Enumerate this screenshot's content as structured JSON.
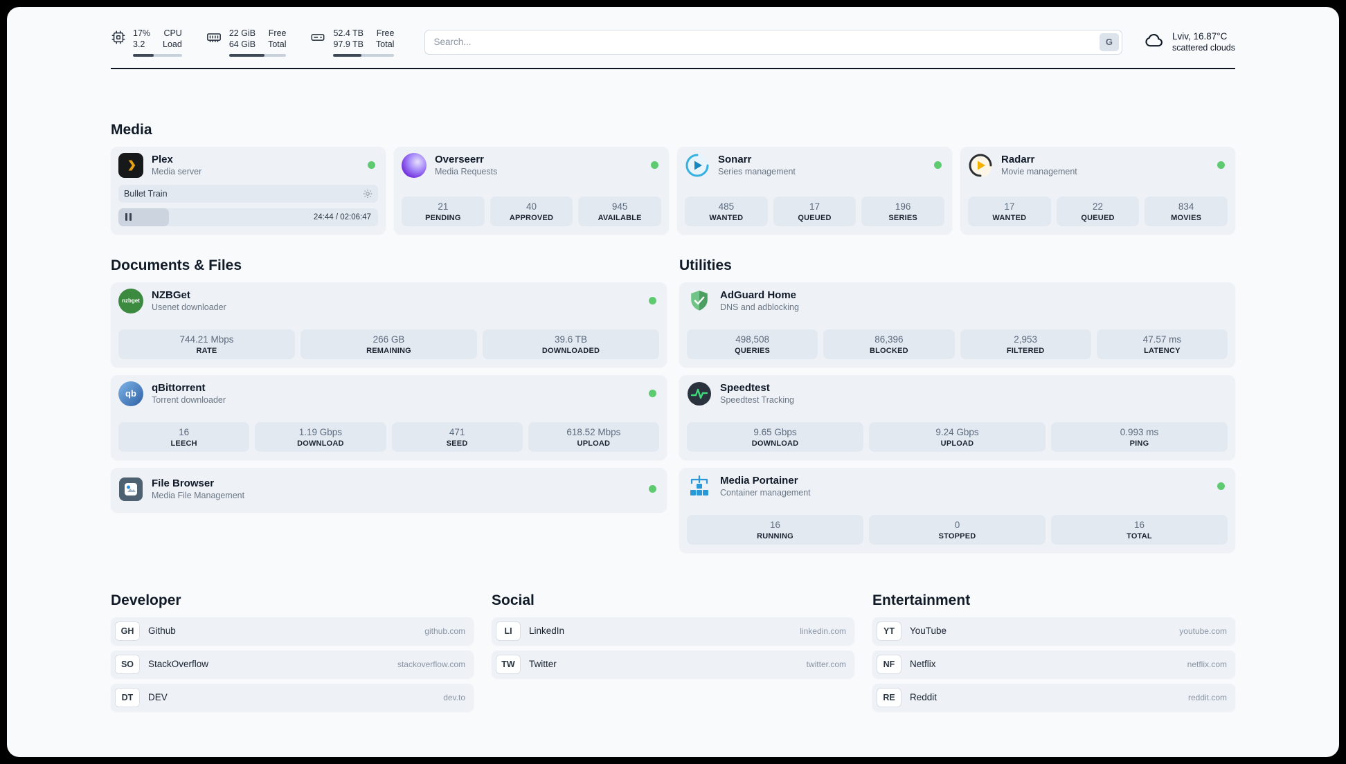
{
  "colors": {
    "status_online": "#5ecb71"
  },
  "header": {
    "cpu": {
      "value_top": "17%",
      "value_bottom": "3.2",
      "label_top": "CPU",
      "label_bottom": "Load",
      "progress": 42
    },
    "memory": {
      "value_top": "22 GiB",
      "value_bottom": "64 GiB",
      "label_top": "Free",
      "label_bottom": "Total",
      "progress": 62
    },
    "disk": {
      "value_top": "52.4 TB",
      "value_bottom": "97.9 TB",
      "label_top": "Free",
      "label_bottom": "Total",
      "progress": 46
    },
    "search": {
      "placeholder": "Search...",
      "engine_label": "G"
    },
    "weather": {
      "location": "Lviv, 16.87°C",
      "condition": "scattered clouds"
    }
  },
  "media": {
    "title": "Media",
    "plex": {
      "name": "Plex",
      "desc": "Media server",
      "now_playing": "Bullet Train",
      "time": "24:44 / 02:06:47",
      "progress": 19.5
    },
    "overseerr": {
      "name": "Overseerr",
      "desc": "Media Requests",
      "stats": [
        {
          "value": "21",
          "label": "PENDING"
        },
        {
          "value": "40",
          "label": "APPROVED"
        },
        {
          "value": "945",
          "label": "AVAILABLE"
        }
      ]
    },
    "sonarr": {
      "name": "Sonarr",
      "desc": "Series management",
      "stats": [
        {
          "value": "485",
          "label": "WANTED"
        },
        {
          "value": "17",
          "label": "QUEUED"
        },
        {
          "value": "196",
          "label": "SERIES"
        }
      ]
    },
    "radarr": {
      "name": "Radarr",
      "desc": "Movie management",
      "stats": [
        {
          "value": "17",
          "label": "WANTED"
        },
        {
          "value": "22",
          "label": "QUEUED"
        },
        {
          "value": "834",
          "label": "MOVIES"
        }
      ]
    }
  },
  "documents": {
    "title": "Documents & Files",
    "nzbget": {
      "name": "NZBGet",
      "desc": "Usenet downloader",
      "icon_text": "nzbget",
      "stats": [
        {
          "value": "744.21 Mbps",
          "label": "RATE"
        },
        {
          "value": "266 GB",
          "label": "REMAINING"
        },
        {
          "value": "39.6 TB",
          "label": "DOWNLOADED"
        }
      ]
    },
    "qbittorrent": {
      "name": "qBittorrent",
      "desc": "Torrent downloader",
      "icon_text": "qb",
      "stats": [
        {
          "value": "16",
          "label": "LEECH"
        },
        {
          "value": "1.19 Gbps",
          "label": "DOWNLOAD"
        },
        {
          "value": "471",
          "label": "SEED"
        },
        {
          "value": "618.52 Mbps",
          "label": "UPLOAD"
        }
      ]
    },
    "filebrowser": {
      "name": "File Browser",
      "desc": "Media File Management"
    }
  },
  "utilities": {
    "title": "Utilities",
    "adguard": {
      "name": "AdGuard Home",
      "desc": "DNS and adblocking",
      "stats": [
        {
          "value": "498,508",
          "label": "QUERIES"
        },
        {
          "value": "86,396",
          "label": "BLOCKED"
        },
        {
          "value": "2,953",
          "label": "FILTERED"
        },
        {
          "value": "47.57 ms",
          "label": "LATENCY"
        }
      ]
    },
    "speedtest": {
      "name": "Speedtest",
      "desc": "Speedtest Tracking",
      "stats": [
        {
          "value": "9.65 Gbps",
          "label": "DOWNLOAD"
        },
        {
          "value": "9.24 Gbps",
          "label": "UPLOAD"
        },
        {
          "value": "0.993 ms",
          "label": "PING"
        }
      ]
    },
    "portainer": {
      "name": "Media Portainer",
      "desc": "Container management",
      "stats": [
        {
          "value": "16",
          "label": "RUNNING"
        },
        {
          "value": "0",
          "label": "STOPPED"
        },
        {
          "value": "16",
          "label": "TOTAL"
        }
      ]
    }
  },
  "bookmarks": {
    "developer": {
      "title": "Developer",
      "items": [
        {
          "abbr": "GH",
          "name": "Github",
          "url": "github.com"
        },
        {
          "abbr": "SO",
          "name": "StackOverflow",
          "url": "stackoverflow.com"
        },
        {
          "abbr": "DT",
          "name": "DEV",
          "url": "dev.to"
        }
      ]
    },
    "social": {
      "title": "Social",
      "items": [
        {
          "abbr": "LI",
          "name": "LinkedIn",
          "url": "linkedin.com"
        },
        {
          "abbr": "TW",
          "name": "Twitter",
          "url": "twitter.com"
        }
      ]
    },
    "entertainment": {
      "title": "Entertainment",
      "items": [
        {
          "abbr": "YT",
          "name": "YouTube",
          "url": "youtube.com"
        },
        {
          "abbr": "NF",
          "name": "Netflix",
          "url": "netflix.com"
        },
        {
          "abbr": "RE",
          "name": "Reddit",
          "url": "reddit.com"
        }
      ]
    }
  }
}
